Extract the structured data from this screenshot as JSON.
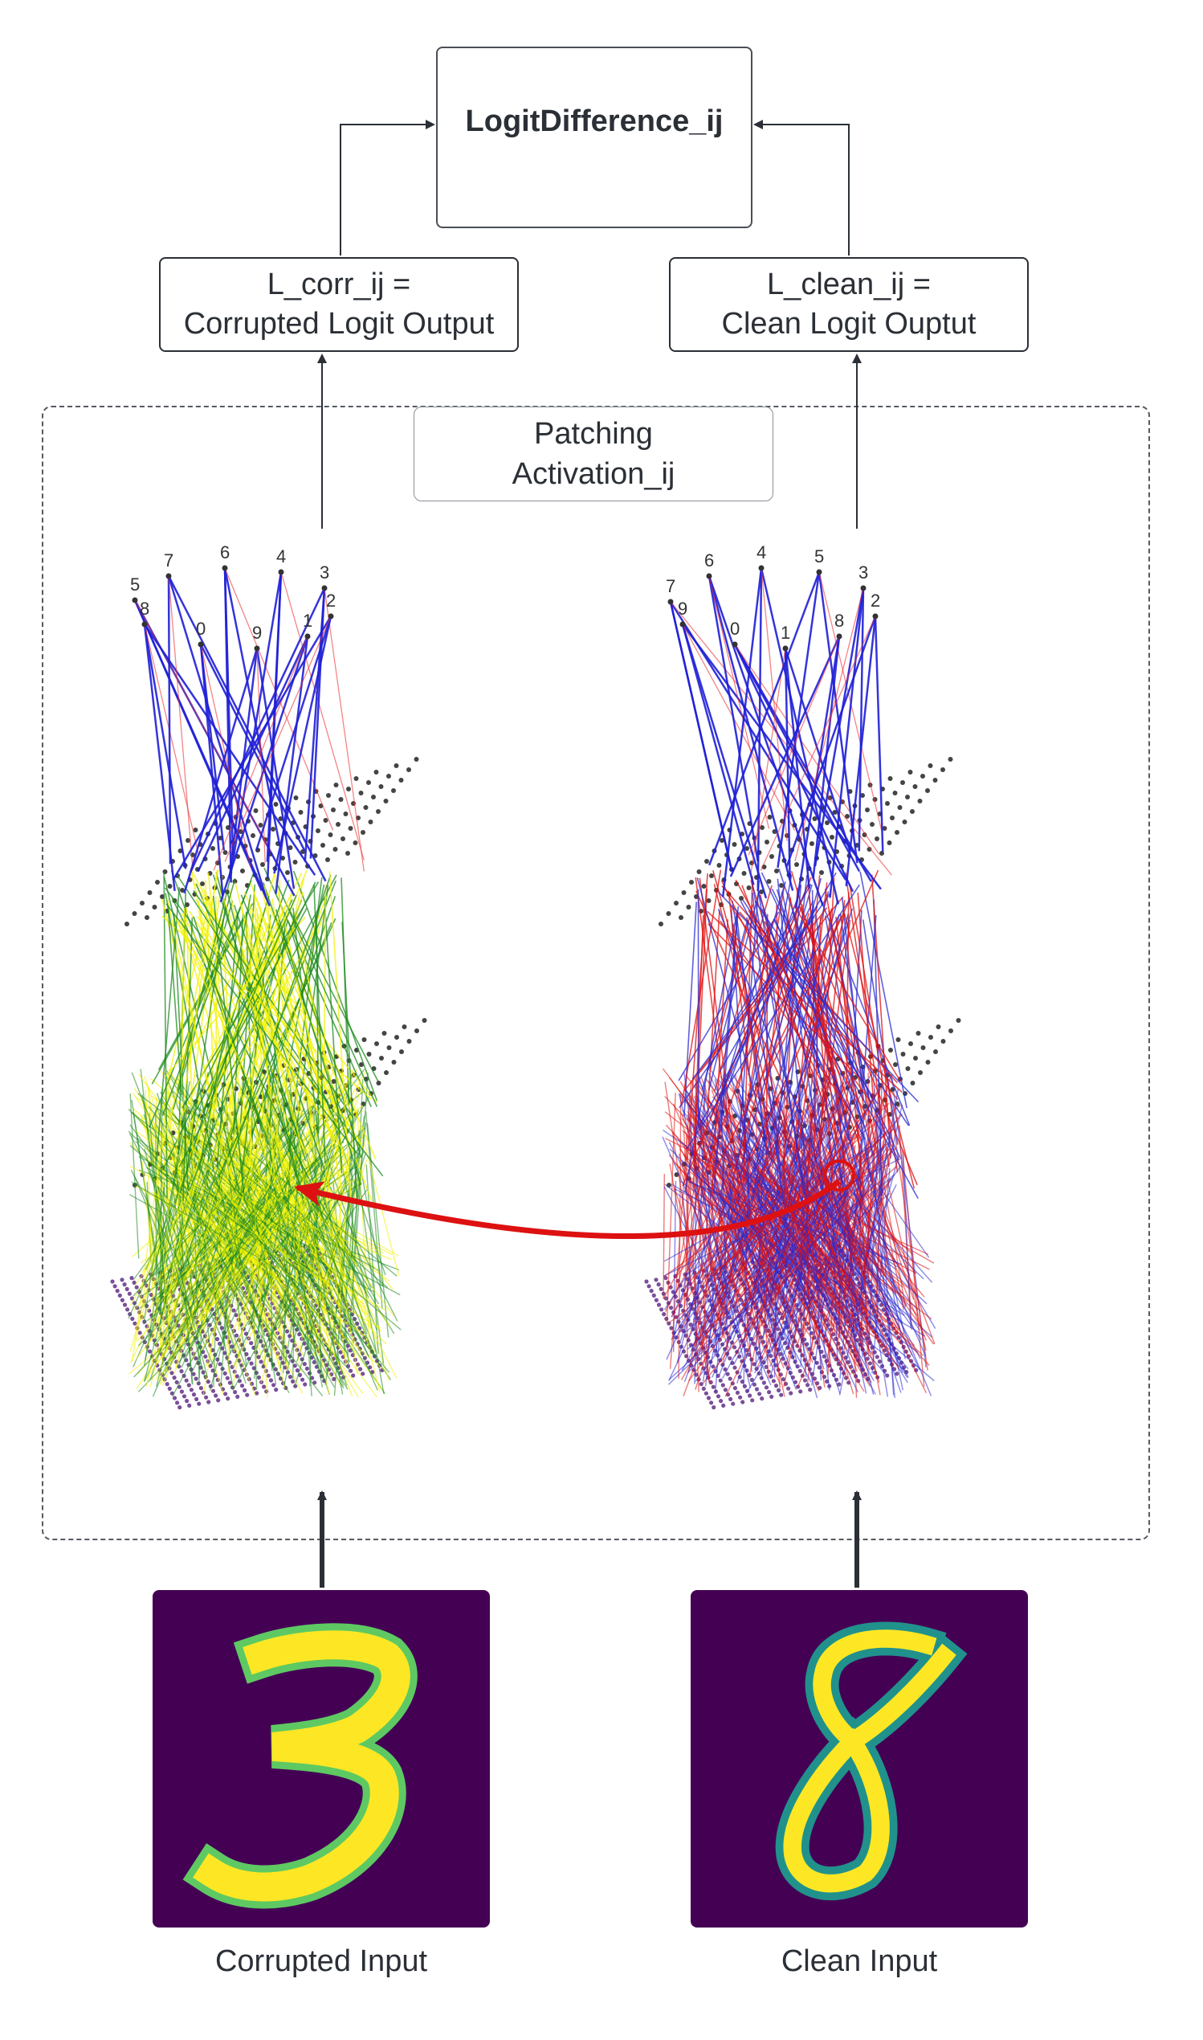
{
  "logit_difference": {
    "title": "LogitDifference_ij"
  },
  "corrupted_output": {
    "line1": "L_corr_ij =",
    "line2": "Corrupted Logit Output"
  },
  "clean_output": {
    "line1": "L_clean_ij =",
    "line2": "Clean Logit Ouptut"
  },
  "patching": {
    "line1": "Patching",
    "line2": "Activation_ij"
  },
  "captions": {
    "corrupted": "Corrupted Input",
    "clean": "Clean Input"
  },
  "left_network": {
    "output_labels": [
      "5",
      "8",
      "7",
      "6",
      "0",
      "9",
      "4",
      "3",
      "1",
      "2"
    ],
    "colors": {
      "top_edges": "#1f1fd6",
      "mid_edges": [
        "#f2f200",
        "#1e8a1e"
      ],
      "input_dots": "#7a4f9a"
    }
  },
  "right_network": {
    "output_labels": [
      "7",
      "9",
      "6",
      "0",
      "4",
      "1",
      "5",
      "8",
      "3",
      "2"
    ],
    "colors": {
      "top_edges": "#1f1fd6",
      "mid_edges": [
        "#e01010",
        "#2a2ad0"
      ],
      "input_dots": "#7a4f9a"
    }
  },
  "patch_arrow_color": "#dd1111",
  "digit_colormap": [
    "#440154",
    "#21918c",
    "#5ec962",
    "#fde725"
  ]
}
